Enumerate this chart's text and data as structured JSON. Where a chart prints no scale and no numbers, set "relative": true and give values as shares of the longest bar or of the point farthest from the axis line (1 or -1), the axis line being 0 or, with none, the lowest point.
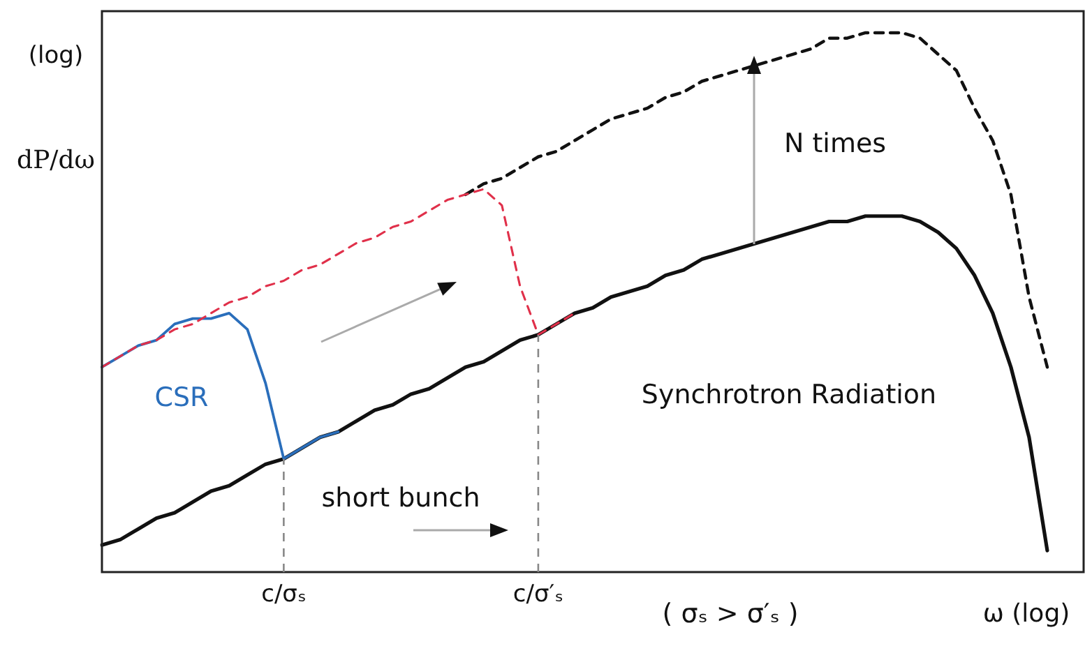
{
  "chart_data": {
    "type": "line",
    "relative": true,
    "ylabel": "dP/dω",
    "xlabel": "ω (log)",
    "legend": false,
    "grid": false,
    "tick_labels": "x",
    "marker": "none",
    "categories": [
      null,
      null,
      null,
      null,
      null,
      null,
      null,
      null,
      null,
      null,
      "c/σₛ",
      null,
      null,
      null,
      null,
      null,
      null,
      null,
      null,
      null,
      null,
      null,
      null,
      null,
      "c/σ′ₛ",
      null,
      null,
      null,
      null,
      null,
      null,
      null,
      null,
      null,
      null,
      null,
      null,
      null,
      null,
      null,
      null,
      null,
      null,
      null,
      null,
      null,
      null,
      null,
      null,
      null,
      null,
      null,
      null,
      null,
      null
    ],
    "series": [
      {
        "color": "#111111",
        "line_style": "solid",
        "values": [
          0.05,
          0.06,
          0.08,
          0.1,
          0.11,
          0.13,
          0.15,
          0.16,
          0.18,
          0.2,
          0.21,
          0.23,
          0.25,
          0.26,
          0.28,
          0.3,
          0.31,
          0.33,
          0.34,
          0.36,
          0.38,
          0.39,
          0.41,
          0.43,
          0.44,
          0.46,
          0.48,
          0.49,
          0.51,
          0.52,
          0.53,
          0.55,
          0.56,
          0.58,
          0.59,
          0.6,
          0.61,
          0.62,
          0.63,
          0.64,
          0.65,
          0.65,
          0.66,
          0.66,
          0.66,
          0.65,
          0.63,
          0.6,
          0.55,
          0.48,
          0.38,
          0.25,
          0.04,
          null,
          null
        ]
      },
      {
        "color": "#111111",
        "line_style": "dashed",
        "values": [
          null,
          null,
          null,
          null,
          null,
          null,
          null,
          null,
          null,
          null,
          null,
          null,
          null,
          null,
          null,
          null,
          null,
          null,
          null,
          null,
          0.7,
          0.72,
          0.73,
          0.75,
          0.77,
          0.78,
          0.8,
          0.82,
          0.84,
          0.85,
          0.86,
          0.88,
          0.89,
          0.91,
          0.92,
          0.93,
          0.94,
          0.95,
          0.96,
          0.97,
          0.99,
          0.99,
          1.0,
          1.0,
          1.0,
          0.99,
          0.96,
          0.93,
          0.86,
          0.8,
          0.7,
          0.51,
          0.38,
          null,
          null
        ]
      },
      {
        "color": "#2a6ebb",
        "line_style": "solid",
        "values": [
          0.38,
          0.4,
          0.42,
          0.43,
          0.46,
          0.47,
          0.47,
          0.48,
          0.45,
          0.35,
          0.21,
          0.23,
          0.25,
          0.26,
          null,
          null,
          null,
          null,
          null,
          null,
          null,
          null,
          null,
          null,
          null,
          null,
          null,
          null,
          null,
          null,
          null,
          null,
          null,
          null,
          null,
          null,
          null,
          null,
          null,
          null,
          null,
          null,
          null,
          null,
          null,
          null,
          null,
          null,
          null,
          null,
          null,
          null,
          null,
          null,
          null
        ]
      },
      {
        "color": "#e0304a",
        "line_style": "dashed",
        "values": [
          0.38,
          0.4,
          0.42,
          0.43,
          0.45,
          0.46,
          0.48,
          0.5,
          0.51,
          0.53,
          0.54,
          0.56,
          0.57,
          0.59,
          0.61,
          0.62,
          0.64,
          0.65,
          0.67,
          0.69,
          0.7,
          0.71,
          0.68,
          0.53,
          0.44,
          0.46,
          0.48,
          null,
          null,
          null,
          null,
          null,
          null,
          null,
          null,
          null,
          null,
          null,
          null,
          null,
          null,
          null,
          null,
          null,
          null,
          null,
          null,
          null,
          null,
          null,
          null,
          null,
          null,
          null,
          null
        ]
      }
    ],
    "ref_lines": [
      {
        "axis": "x",
        "value": "c/σₛ",
        "color": "#888888",
        "line_style": "dashed"
      },
      {
        "axis": "x",
        "value": "c/σ′ₛ",
        "color": "#888888",
        "line_style": "dashed"
      }
    ],
    "annotations": [
      "(log)",
      "CSR",
      "Synchrotron Radiation",
      "N times",
      "short bunch",
      "( σₛ > σ′ₛ )"
    ]
  }
}
